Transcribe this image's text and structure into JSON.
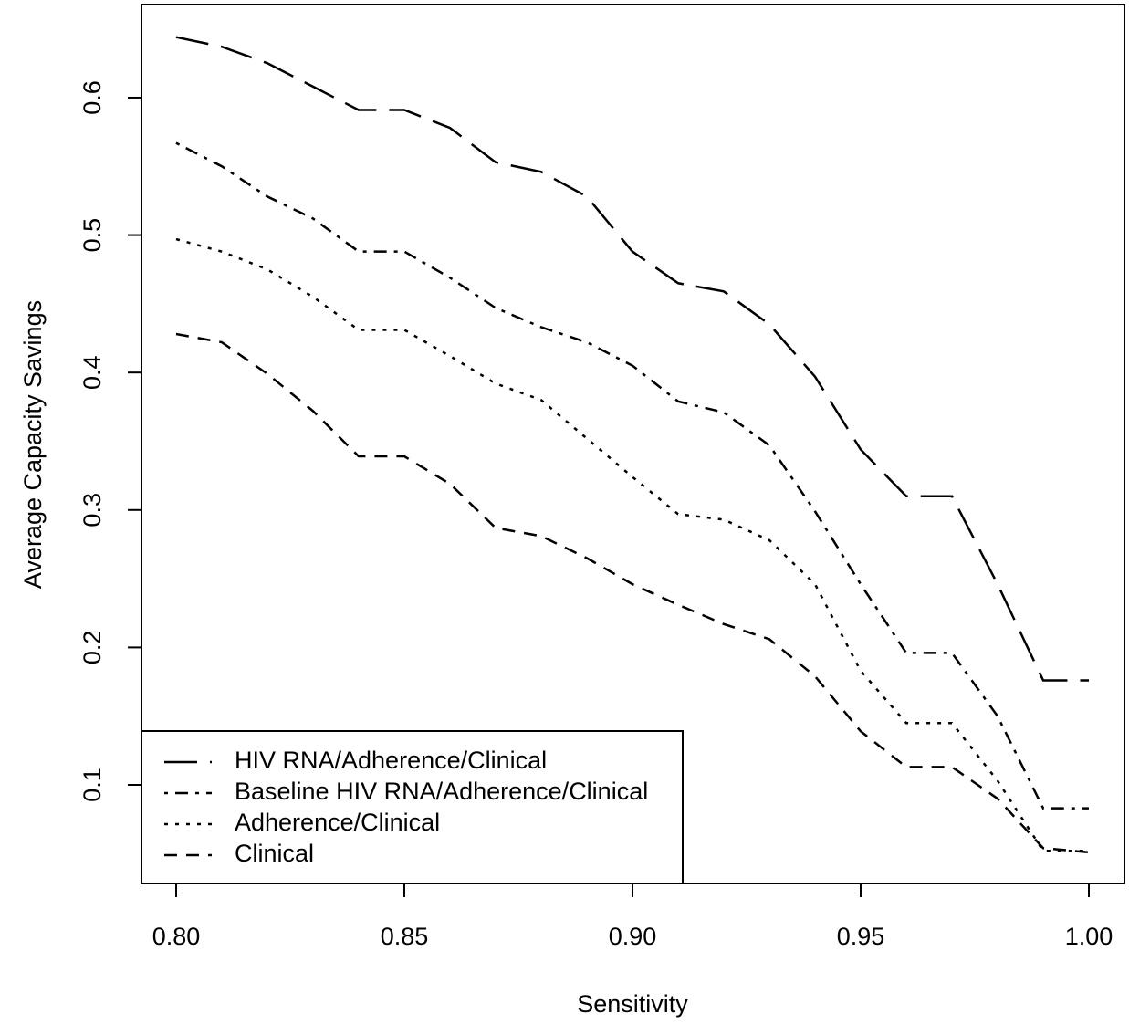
{
  "chart_data": {
    "type": "line",
    "x_label": "Sensitivity",
    "y_label": "Average Capacity Savings",
    "x": [
      0.8,
      0.81,
      0.82,
      0.83,
      0.84,
      0.85,
      0.86,
      0.87,
      0.88,
      0.89,
      0.9,
      0.91,
      0.92,
      0.93,
      0.94,
      0.95,
      0.96,
      0.97,
      0.98,
      0.99,
      1.0
    ],
    "series": [
      {
        "name": "HIV RNA/Adherence/Clinical",
        "color": "#000000",
        "dash": "longdash",
        "values": [
          0.644,
          0.637,
          0.625,
          0.608,
          0.591,
          0.591,
          0.578,
          0.553,
          0.546,
          0.528,
          0.488,
          0.465,
          0.459,
          0.435,
          0.397,
          0.344,
          0.31,
          0.31,
          0.246,
          0.176,
          0.176
        ]
      },
      {
        "name": "Baseline HIV RNA/Adherence/Clinical",
        "color": "#000000",
        "dash": "dotdash",
        "values": [
          0.567,
          0.55,
          0.528,
          0.512,
          0.488,
          0.488,
          0.469,
          0.447,
          0.433,
          0.422,
          0.405,
          0.379,
          0.371,
          0.347,
          0.299,
          0.246,
          0.196,
          0.196,
          0.15,
          0.083,
          0.083
        ]
      },
      {
        "name": "Adherence/Clinical",
        "color": "#000000",
        "dash": "dotted",
        "values": [
          0.497,
          0.488,
          0.475,
          0.455,
          0.431,
          0.431,
          0.412,
          0.392,
          0.38,
          0.352,
          0.324,
          0.297,
          0.293,
          0.278,
          0.246,
          0.183,
          0.145,
          0.145,
          0.103,
          0.052,
          0.052
        ]
      },
      {
        "name": "Clinical",
        "color": "#000000",
        "dash": "dashed",
        "values": [
          0.428,
          0.422,
          0.399,
          0.372,
          0.339,
          0.339,
          0.319,
          0.287,
          0.281,
          0.265,
          0.246,
          0.231,
          0.217,
          0.206,
          0.179,
          0.139,
          0.113,
          0.113,
          0.09,
          0.054,
          0.051
        ]
      }
    ],
    "xlim": [
      0.7924,
      1.0078
    ],
    "ylim": [
      0.0283,
      0.6677
    ],
    "xticks": [
      {
        "value": 0.8,
        "label": "0.80"
      },
      0.85,
      {
        "value": 0.9,
        "label": "0.90"
      },
      0.95,
      {
        "value": 1.0,
        "label": "1.00"
      }
    ],
    "yticks": [
      0.1,
      0.2,
      0.3,
      0.4,
      0.5,
      0.6
    ],
    "grid": false,
    "legend_position": "bottomleft"
  }
}
